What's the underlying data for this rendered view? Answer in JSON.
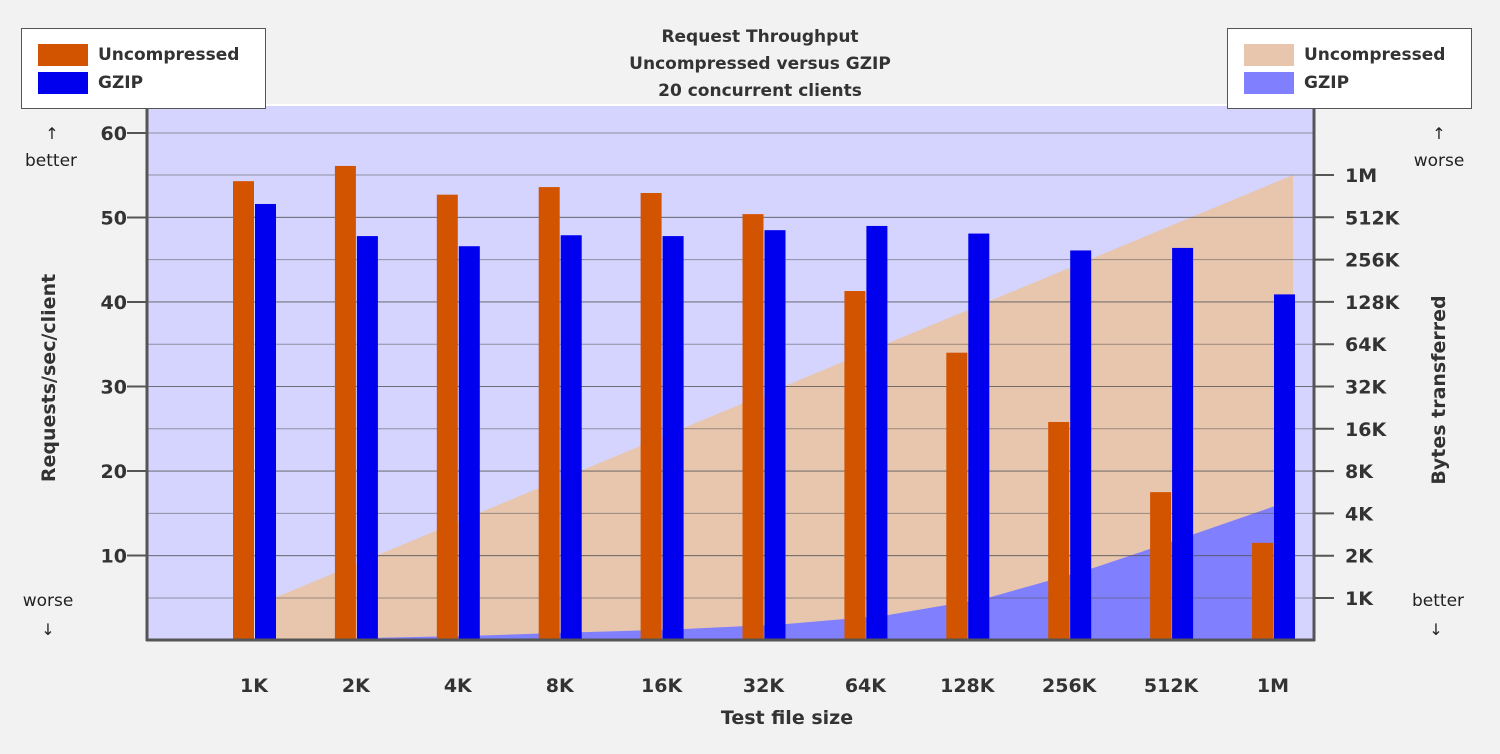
{
  "chart_data": {
    "type": "bar",
    "title": [
      "Request Throughput",
      "Uncompressed versus GZIP",
      "20 concurrent clients"
    ],
    "xlabel": "Test file size",
    "ylabel_left": "Requests/sec/client",
    "ylabel_right": "Bytes transferred",
    "categories": [
      "1K",
      "2K",
      "4K",
      "8K",
      "16K",
      "32K",
      "64K",
      "128K",
      "256K",
      "512K",
      "1M"
    ],
    "left_axis": {
      "ylim": [
        0,
        63
      ],
      "ticks": [
        10,
        20,
        30,
        40,
        50,
        60
      ]
    },
    "right_axis": {
      "scale": "log2",
      "ticks": [
        "1K",
        "2K",
        "4K",
        "8K",
        "16K",
        "32K",
        "64K",
        "128K",
        "256K",
        "512K",
        "1M"
      ]
    },
    "series": [
      {
        "name": "Uncompressed",
        "kind": "bar",
        "color": "#d35400",
        "values": [
          54.3,
          56.1,
          52.7,
          53.6,
          52.9,
          50.4,
          41.3,
          34.0,
          25.8,
          17.5,
          11.5
        ]
      },
      {
        "name": "GZIP",
        "kind": "bar",
        "color": "#0000ee",
        "values": [
          51.6,
          47.8,
          46.6,
          47.9,
          47.8,
          48.5,
          49.0,
          48.1,
          46.1,
          46.4,
          40.9
        ]
      }
    ],
    "area_series": [
      {
        "name": "Uncompressed",
        "kind": "area",
        "color": "#e8c6ae",
        "values_bytes": [
          "1K",
          "2K",
          "4K",
          "8K",
          "16K",
          "32K",
          "64K",
          "128K",
          "256K",
          "512K",
          "1M"
        ]
      },
      {
        "name": "GZIP",
        "kind": "area",
        "color": "#8080ff",
        "values_bytes": [
          "0.5K",
          "0.52K",
          "0.54K",
          "0.57K",
          "0.6K",
          "0.65K",
          "0.75K",
          "1K",
          "1.6K",
          "2.8K",
          "5K"
        ]
      }
    ],
    "grid": true
  },
  "legend_left": [
    {
      "label": "Uncompressed",
      "color": "#d35400"
    },
    {
      "label": "GZIP",
      "color": "#0000ee"
    }
  ],
  "legend_right": [
    {
      "label": "Uncompressed",
      "color": "#e8c6ae"
    },
    {
      "label": "GZIP",
      "color": "#8080ff"
    }
  ],
  "notes": {
    "left_top": "better",
    "left_bottom": "worse",
    "right_top": "worse",
    "right_bottom": "better",
    "arrow_up": "↑",
    "arrow_down": "↓"
  },
  "colors": {
    "plot_bg": "#d4d4ff",
    "axis": "#555555",
    "grid": "#555555"
  }
}
